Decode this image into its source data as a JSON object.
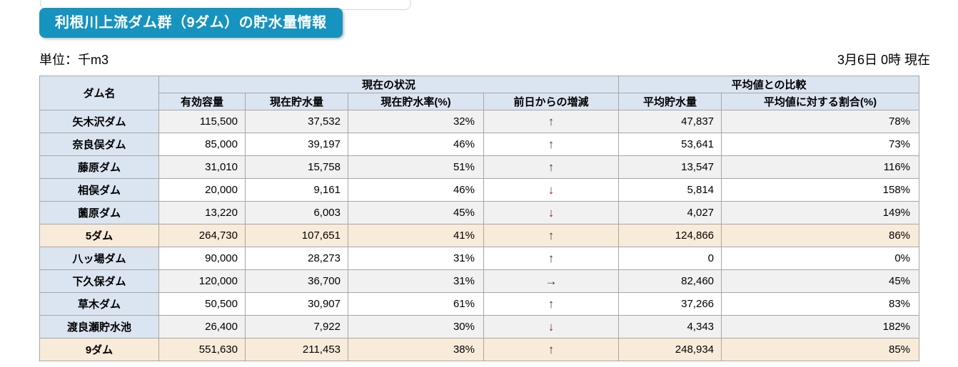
{
  "title": "利根川上流ダム群（9ダム）の貯水量情報",
  "unit_label": "単位：千m3",
  "datetime_label": "3月6日 0時 現在",
  "colors": {
    "title_bg": "#1793c0",
    "header_bg": "#dbe5f1",
    "stripe_bg": "#f1f1f1",
    "summary_bg": "#f9ebd9",
    "arrow_up": "#3d3d3d",
    "arrow_down": "#9e1f1f",
    "border": "#a6a6a6"
  },
  "table": {
    "group_headers": {
      "dam_name": "ダム名",
      "current_status": "現在の状況",
      "avg_comparison": "平均値との比較"
    },
    "columns": {
      "effective_capacity": "有効容量",
      "current_storage": "現在貯水量",
      "current_rate": "現在貯水率(%)",
      "day_change": "前日からの増減",
      "average_storage": "平均貯水量",
      "ratio_to_average": "平均値に対する割合(%)"
    },
    "trend_glyphs": {
      "up": "↑",
      "down": "↓",
      "flat": "→"
    },
    "rows": [
      {
        "name": "矢木沢ダム",
        "effective_capacity": "115,500",
        "current_storage": "37,532",
        "current_rate": "32%",
        "trend": "up",
        "average_storage": "47,837",
        "ratio_to_average": "78%",
        "summary": false
      },
      {
        "name": "奈良俣ダム",
        "effective_capacity": "85,000",
        "current_storage": "39,197",
        "current_rate": "46%",
        "trend": "up",
        "average_storage": "53,641",
        "ratio_to_average": "73%",
        "summary": false
      },
      {
        "name": "藤原ダム",
        "effective_capacity": "31,010",
        "current_storage": "15,758",
        "current_rate": "51%",
        "trend": "up",
        "average_storage": "13,547",
        "ratio_to_average": "116%",
        "summary": false
      },
      {
        "name": "相俣ダム",
        "effective_capacity": "20,000",
        "current_storage": "9,161",
        "current_rate": "46%",
        "trend": "down",
        "average_storage": "5,814",
        "ratio_to_average": "158%",
        "summary": false
      },
      {
        "name": "薗原ダム",
        "effective_capacity": "13,220",
        "current_storage": "6,003",
        "current_rate": "45%",
        "trend": "down",
        "average_storage": "4,027",
        "ratio_to_average": "149%",
        "summary": false
      },
      {
        "name": "5ダム",
        "effective_capacity": "264,730",
        "current_storage": "107,651",
        "current_rate": "41%",
        "trend": "up",
        "average_storage": "124,866",
        "ratio_to_average": "86%",
        "summary": true
      },
      {
        "name": "八ッ場ダム",
        "effective_capacity": "90,000",
        "current_storage": "28,273",
        "current_rate": "31%",
        "trend": "up",
        "average_storage": "0",
        "ratio_to_average": "0%",
        "summary": false
      },
      {
        "name": "下久保ダム",
        "effective_capacity": "120,000",
        "current_storage": "36,700",
        "current_rate": "31%",
        "trend": "flat",
        "average_storage": "82,460",
        "ratio_to_average": "45%",
        "summary": false
      },
      {
        "name": "草木ダム",
        "effective_capacity": "50,500",
        "current_storage": "30,907",
        "current_rate": "61%",
        "trend": "up",
        "average_storage": "37,266",
        "ratio_to_average": "83%",
        "summary": false
      },
      {
        "name": "渡良瀬貯水池",
        "effective_capacity": "26,400",
        "current_storage": "7,922",
        "current_rate": "30%",
        "trend": "down",
        "average_storage": "4,343",
        "ratio_to_average": "182%",
        "summary": false
      },
      {
        "name": "9ダム",
        "effective_capacity": "551,630",
        "current_storage": "211,453",
        "current_rate": "38%",
        "trend": "up",
        "average_storage": "248,934",
        "ratio_to_average": "85%",
        "summary": true
      }
    ]
  }
}
